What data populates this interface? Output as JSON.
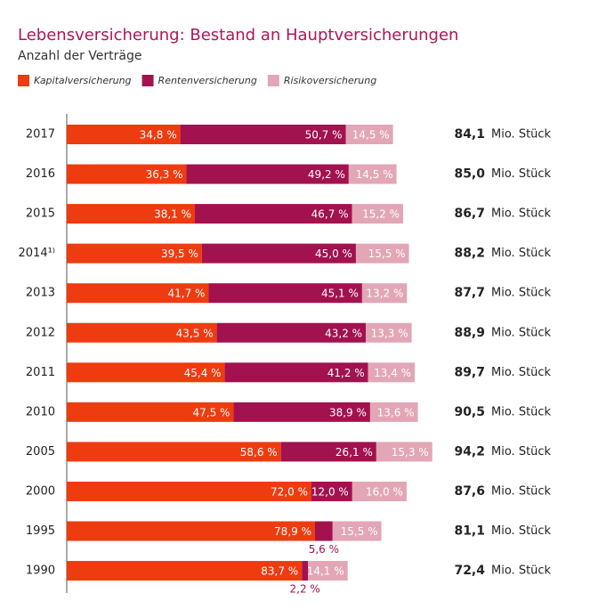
{
  "chart_data": {
    "type": "bar",
    "orientation": "horizontal",
    "stacked": true,
    "title": "Lebensversicherung: Bestand an Hauptversicherungen",
    "subtitle": "Anzahl der Verträge",
    "categories": [
      "2017",
      "2016",
      "2015",
      "2014¹⁾",
      "2013",
      "2012",
      "2011",
      "2010",
      "2005",
      "2000",
      "1995",
      "1990"
    ],
    "series": [
      {
        "name": "Kapitalversicherung",
        "color": "#ef3b10",
        "values": [
          34.8,
          36.3,
          38.1,
          39.5,
          41.7,
          43.5,
          45.4,
          47.5,
          58.6,
          72.0,
          78.9,
          83.7
        ],
        "value_labels": [
          "34,8 %",
          "36,3 %",
          "38,1 %",
          "39,5 %",
          "41,7 %",
          "43,5 %",
          "45,4 %",
          "47,5 %",
          "58,6 %",
          "72,0 %",
          "78,9 %",
          "83,7 %"
        ]
      },
      {
        "name": "Rentenversicherung",
        "color": "#a2124e",
        "values": [
          50.7,
          49.2,
          46.7,
          45.0,
          45.1,
          43.2,
          41.2,
          38.9,
          26.1,
          12.0,
          5.6,
          2.2
        ],
        "value_labels": [
          "50,7 %",
          "49,2 %",
          "46,7 %",
          "45,0 %",
          "45,1 %",
          "43,2 %",
          "41,2 %",
          "38,9 %",
          "26,1 %",
          "12,0 %",
          "5,6 %",
          "2,2 %"
        ]
      },
      {
        "name": "Risikoversicherung",
        "color": "#e2a6b6",
        "values": [
          14.5,
          14.5,
          15.2,
          15.5,
          13.2,
          13.3,
          13.4,
          13.6,
          15.3,
          16.0,
          15.5,
          14.1
        ],
        "value_labels": [
          "14,5 %",
          "14,5 %",
          "15,2 %",
          "15,5 %",
          "13,2 %",
          "13,3 %",
          "13,4 %",
          "13,6 %",
          "15,3 %",
          "16,0 %",
          "15,5 %",
          "14,1 %"
        ]
      }
    ],
    "totals": {
      "unit": "Mio. Stück",
      "values": [
        84.1,
        85.0,
        86.7,
        88.2,
        87.7,
        88.9,
        89.7,
        90.5,
        94.2,
        87.6,
        81.1,
        72.4
      ],
      "value_labels": [
        "84,1",
        "85,0",
        "86,7",
        "88,2",
        "87,7",
        "88,9",
        "89,7",
        "90,5",
        "94,2",
        "87,6",
        "81,1",
        "72,4"
      ]
    }
  }
}
